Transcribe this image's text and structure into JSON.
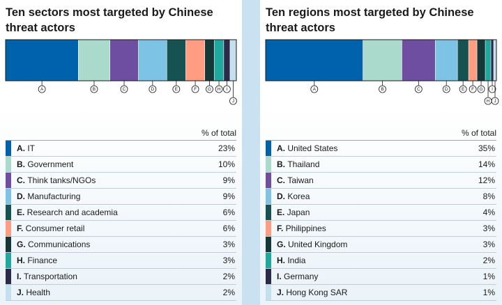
{
  "colors": [
    "#0061ad",
    "#a9dacb",
    "#6e4ea0",
    "#7cc3e6",
    "#175252",
    "#ff9c82",
    "#143838",
    "#1fa99e",
    "#2c2a4a",
    "#c3e0ef"
  ],
  "chart_data": [
    {
      "type": "stacked-bar",
      "title": "Ten sectors most targeted by Chinese threat actors",
      "column_header": "% of total",
      "unit": "%",
      "items": [
        {
          "letter": "A.",
          "label": "IT",
          "value": 23
        },
        {
          "letter": "B.",
          "label": "Government",
          "value": 10
        },
        {
          "letter": "C.",
          "label": "Think tanks/NGOs",
          "value": 9
        },
        {
          "letter": "D.",
          "label": "Manufacturing",
          "value": 9
        },
        {
          "letter": "E.",
          "label": "Research and academia",
          "value": 6
        },
        {
          "letter": "F.",
          "label": "Consumer retail",
          "value": 6
        },
        {
          "letter": "G.",
          "label": "Communications",
          "value": 3
        },
        {
          "letter": "H.",
          "label": "Finance",
          "value": 3
        },
        {
          "letter": "I.",
          "label": "Transportation",
          "value": 2
        },
        {
          "letter": "J.",
          "label": "Health",
          "value": 2
        }
      ]
    },
    {
      "type": "stacked-bar",
      "title": "Ten regions most targeted by Chinese threat actors",
      "column_header": "% of total",
      "unit": "%",
      "items": [
        {
          "letter": "A.",
          "label": "United States",
          "value": 35
        },
        {
          "letter": "B.",
          "label": "Thailand",
          "value": 14
        },
        {
          "letter": "C.",
          "label": "Taiwan",
          "value": 12
        },
        {
          "letter": "D.",
          "label": "Korea",
          "value": 8
        },
        {
          "letter": "E.",
          "label": "Japan",
          "value": 4
        },
        {
          "letter": "F.",
          "label": "Philippines",
          "value": 3
        },
        {
          "letter": "G.",
          "label": "United Kingdom",
          "value": 3
        },
        {
          "letter": "H.",
          "label": "India",
          "value": 2
        },
        {
          "letter": "I.",
          "label": "Germany",
          "value": 1
        },
        {
          "letter": "J.",
          "label": "Hong Kong SAR",
          "value": 1
        }
      ]
    }
  ]
}
